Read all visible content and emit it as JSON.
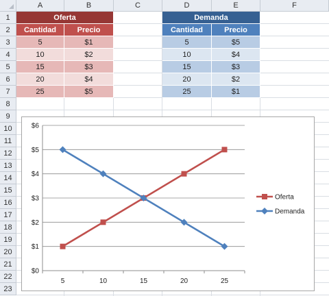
{
  "columns": [
    "A",
    "B",
    "C",
    "D",
    "E",
    "F"
  ],
  "rows": [
    "1",
    "2",
    "3",
    "4",
    "5",
    "6",
    "7",
    "8",
    "9",
    "10",
    "11",
    "12",
    "13",
    "14",
    "15",
    "16",
    "17",
    "18",
    "19",
    "20",
    "21",
    "22",
    "23"
  ],
  "oferta": {
    "title": "Oferta",
    "headers": [
      "Cantidad",
      "Precio"
    ],
    "data": [
      [
        "5",
        "$1"
      ],
      [
        "10",
        "$2"
      ],
      [
        "15",
        "$3"
      ],
      [
        "20",
        "$4"
      ],
      [
        "25",
        "$5"
      ]
    ]
  },
  "demanda": {
    "title": "Demanda",
    "headers": [
      "Cantidad",
      "Precio"
    ],
    "data": [
      [
        "5",
        "$5"
      ],
      [
        "10",
        "$4"
      ],
      [
        "15",
        "$3"
      ],
      [
        "20",
        "$2"
      ],
      [
        "25",
        "$1"
      ]
    ]
  },
  "colors": {
    "oferta_title": "#963735",
    "oferta_header": "#c0504d",
    "demanda_title": "#366092",
    "demanda_header": "#4f81bd"
  },
  "chart_data": {
    "type": "line",
    "x": [
      5,
      10,
      15,
      20,
      25
    ],
    "x_tick_labels": [
      "5",
      "10",
      "15",
      "20",
      "25"
    ],
    "y_tick_labels": [
      "$0",
      "$1",
      "$2",
      "$3",
      "$4",
      "$5",
      "$6"
    ],
    "ylim": [
      0,
      6
    ],
    "grid": true,
    "legend_position": "right",
    "series": [
      {
        "name": "Oferta",
        "values": [
          1,
          2,
          3,
          4,
          5
        ],
        "color": "#c0504d",
        "marker": "square"
      },
      {
        "name": "Demanda",
        "values": [
          5,
          4,
          3,
          2,
          1
        ],
        "color": "#4f81bd",
        "marker": "diamond"
      }
    ]
  }
}
